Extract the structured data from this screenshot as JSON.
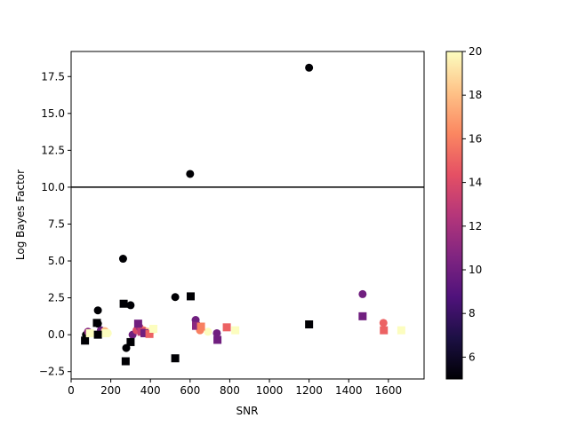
{
  "chart_data": {
    "type": "scatter",
    "xlabel": "SNR",
    "ylabel": "Log Bayes Factor",
    "xlim": [
      0,
      1780
    ],
    "ylim": [
      -3.0,
      19.2
    ],
    "xticks": [
      0,
      200,
      400,
      600,
      800,
      1000,
      1200,
      1400,
      1600
    ],
    "yticks": [
      -2.5,
      0.0,
      2.5,
      5.0,
      7.5,
      10.0,
      12.5,
      15.0,
      17.5
    ],
    "xtick_labels": [
      "0",
      "200",
      "400",
      "600",
      "800",
      "1000",
      "1200",
      "1400",
      "1600"
    ],
    "ytick_labels": [
      "−2.5",
      "0.0",
      "2.5",
      "5.0",
      "7.5",
      "10.0",
      "12.5",
      "15.0",
      "17.5"
    ],
    "threshold_line": 10.0,
    "colorbar": {
      "colormap": "magma",
      "range": [
        5,
        20
      ],
      "ticks": [
        6,
        8,
        10,
        12,
        14,
        16,
        18,
        20
      ],
      "tick_labels": [
        "6",
        "8",
        "10",
        "12",
        "14",
        "16",
        "18",
        "20"
      ]
    },
    "series": [
      {
        "marker": "circle",
        "points": [
          {
            "x": 75,
            "y": 0.0,
            "c": 5
          },
          {
            "x": 85,
            "y": 0.2,
            "c": 11
          },
          {
            "x": 100,
            "y": 0.1,
            "c": 20
          },
          {
            "x": 135,
            "y": 1.65,
            "c": 5
          },
          {
            "x": 135,
            "y": 0.75,
            "c": 5
          },
          {
            "x": 150,
            "y": 0.3,
            "c": 10
          },
          {
            "x": 170,
            "y": 0.25,
            "c": 18
          },
          {
            "x": 185,
            "y": 0.1,
            "c": 20
          },
          {
            "x": 262,
            "y": 5.15,
            "c": 5
          },
          {
            "x": 278,
            "y": -0.9,
            "c": 5
          },
          {
            "x": 300,
            "y": 2.0,
            "c": 5
          },
          {
            "x": 310,
            "y": 0.0,
            "c": 10
          },
          {
            "x": 330,
            "y": 0.3,
            "c": 14
          },
          {
            "x": 345,
            "y": 0.5,
            "c": 12
          },
          {
            "x": 365,
            "y": 0.3,
            "c": 16
          },
          {
            "x": 385,
            "y": 0.2,
            "c": 18
          },
          {
            "x": 410,
            "y": 0.3,
            "c": 20
          },
          {
            "x": 525,
            "y": 2.55,
            "c": 5
          },
          {
            "x": 600,
            "y": 10.9,
            "c": 5
          },
          {
            "x": 628,
            "y": 1.0,
            "c": 10
          },
          {
            "x": 650,
            "y": 0.3,
            "c": 16
          },
          {
            "x": 690,
            "y": 0.2,
            "c": 20
          },
          {
            "x": 735,
            "y": 0.1,
            "c": 10
          },
          {
            "x": 1200,
            "y": 18.1,
            "c": 5
          },
          {
            "x": 1470,
            "y": 2.75,
            "c": 10
          },
          {
            "x": 1575,
            "y": 0.8,
            "c": 15
          }
        ]
      },
      {
        "marker": "square",
        "points": [
          {
            "x": 70,
            "y": -0.4,
            "c": 5
          },
          {
            "x": 95,
            "y": 0.1,
            "c": 20
          },
          {
            "x": 130,
            "y": 0.8,
            "c": 5
          },
          {
            "x": 135,
            "y": 0.0,
            "c": 5
          },
          {
            "x": 175,
            "y": 0.1,
            "c": 20
          },
          {
            "x": 265,
            "y": 2.1,
            "c": 5
          },
          {
            "x": 275,
            "y": -1.8,
            "c": 5
          },
          {
            "x": 300,
            "y": -0.5,
            "c": 5
          },
          {
            "x": 338,
            "y": 0.75,
            "c": 10
          },
          {
            "x": 355,
            "y": 0.2,
            "c": 13
          },
          {
            "x": 370,
            "y": 0.1,
            "c": 10
          },
          {
            "x": 395,
            "y": 0.05,
            "c": 15
          },
          {
            "x": 415,
            "y": 0.4,
            "c": 20
          },
          {
            "x": 525,
            "y": -1.6,
            "c": 5
          },
          {
            "x": 603,
            "y": 2.6,
            "c": 5
          },
          {
            "x": 630,
            "y": 0.6,
            "c": 11
          },
          {
            "x": 655,
            "y": 0.55,
            "c": 16
          },
          {
            "x": 738,
            "y": -0.35,
            "c": 10
          },
          {
            "x": 785,
            "y": 0.5,
            "c": 15
          },
          {
            "x": 828,
            "y": 0.3,
            "c": 20
          },
          {
            "x": 1200,
            "y": 0.7,
            "c": 5
          },
          {
            "x": 1470,
            "y": 1.25,
            "c": 10
          },
          {
            "x": 1577,
            "y": 0.3,
            "c": 15
          },
          {
            "x": 1665,
            "y": 0.3,
            "c": 20
          }
        ]
      }
    ]
  }
}
